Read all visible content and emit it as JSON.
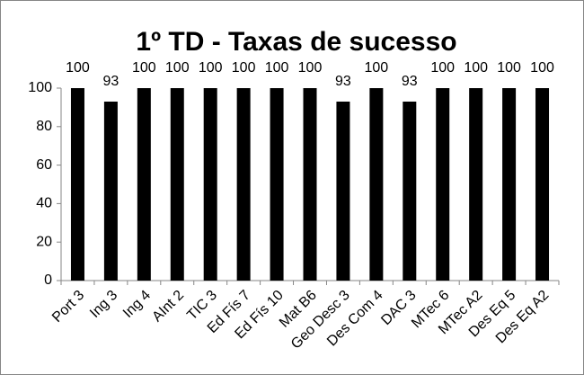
{
  "chart_data": {
    "type": "bar",
    "title": "1º TD - Taxas de sucesso",
    "categories": [
      "Port 3",
      "Ing 3",
      "Ing 4",
      "AInt 2",
      "TIC 3",
      "Ed Fís 7",
      "Ed Fís 10",
      "Mat B6",
      "Geo Desc 3",
      "Des Com 4",
      "DAC 3",
      "MTec 6",
      "MTec A2",
      "Des Eq 5",
      "Des Eq A2"
    ],
    "values": [
      100,
      93,
      100,
      100,
      100,
      100,
      100,
      100,
      93,
      100,
      93,
      100,
      100,
      100,
      100
    ],
    "color": "#000000",
    "ylim": [
      0,
      100
    ],
    "yticks": [
      0,
      20,
      40,
      60,
      80,
      100
    ],
    "grid": false
  }
}
